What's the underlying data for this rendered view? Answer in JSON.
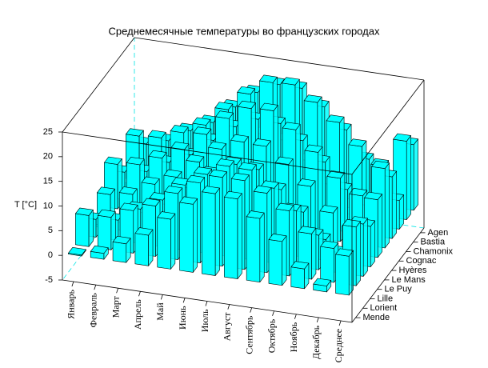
{
  "chart_data": {
    "type": "bar3d",
    "title": "Среднемесячные температуры во французских городах",
    "z_label": "T [°C]",
    "categories": [
      "Январь",
      "Февраль",
      "Март",
      "Апрель",
      "Май",
      "Июнь",
      "Июль",
      "Август",
      "Сентябрь",
      "Октябрь",
      "Ноябрь",
      "Декабрь",
      "Среднее"
    ],
    "color": "#00ffff",
    "zlim": [
      -5,
      25
    ],
    "zticks": [
      -5,
      0,
      5,
      10,
      15,
      20,
      25
    ],
    "series": [
      {
        "name": "Agen",
        "values": [
          5.5,
          6.8,
          9.5,
          11.8,
          15.6,
          19.2,
          21.5,
          21.4,
          18.3,
          14.3,
          9.0,
          6.1,
          13.3
        ]
      },
      {
        "name": "Bastia",
        "values": [
          9.0,
          9.3,
          11.0,
          13.2,
          17.0,
          20.8,
          23.8,
          24.0,
          21.1,
          17.7,
          13.5,
          10.2,
          15.9
        ]
      },
      {
        "name": "Chamonix",
        "values": [
          -3.5,
          -2.2,
          1.2,
          4.8,
          9.3,
          12.8,
          15.2,
          14.6,
          11.2,
          7.0,
          1.6,
          -2.4,
          5.8
        ]
      },
      {
        "name": "Cognac",
        "values": [
          5.5,
          6.3,
          8.8,
          11.0,
          14.6,
          18.0,
          20.2,
          20.0,
          17.2,
          13.5,
          8.6,
          6.0,
          12.5
        ]
      },
      {
        "name": "Hyères",
        "values": [
          9.0,
          9.6,
          11.6,
          14.0,
          17.7,
          21.6,
          24.3,
          24.5,
          21.3,
          17.4,
          12.8,
          9.9,
          16.1
        ]
      },
      {
        "name": "Le Mans",
        "values": [
          4.8,
          5.5,
          8.2,
          10.3,
          14.0,
          17.3,
          19.4,
          19.2,
          16.2,
          12.4,
          7.7,
          5.3,
          11.7
        ]
      },
      {
        "name": "Le Puy",
        "values": [
          0.5,
          1.6,
          4.2,
          6.6,
          10.6,
          14.2,
          16.8,
          16.4,
          13.0,
          9.1,
          4.2,
          1.4,
          8.2
        ]
      },
      {
        "name": "Lille",
        "values": [
          3.6,
          4.1,
          7.0,
          9.5,
          13.2,
          16.0,
          18.3,
          18.2,
          15.2,
          11.3,
          7.0,
          4.1,
          10.6
        ]
      },
      {
        "name": "Lorient",
        "values": [
          6.3,
          6.6,
          8.6,
          10.2,
          13.4,
          16.2,
          18.0,
          18.0,
          16.1,
          13.2,
          9.2,
          6.9,
          11.9
        ]
      },
      {
        "name": "Mende",
        "values": [
          0.2,
          1.2,
          3.8,
          6.2,
          10.1,
          13.8,
          16.6,
          16.2,
          12.9,
          8.9,
          4.0,
          1.2,
          7.9
        ]
      }
    ]
  }
}
